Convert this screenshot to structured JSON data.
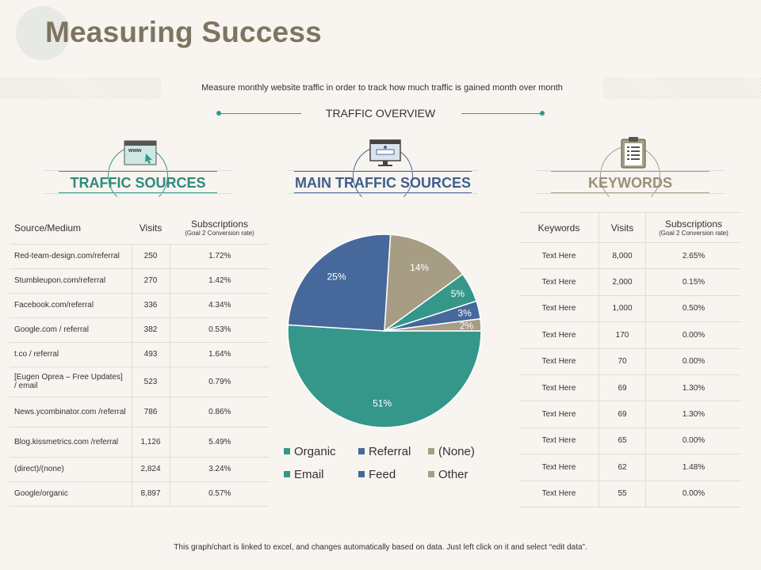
{
  "title": "Measuring Success",
  "subtitle": "Measure monthly website traffic in order to track how much traffic is gained month over month",
  "overview_label": "TRAFFIC OVERVIEW",
  "colors": {
    "teal": "#34978a",
    "blue": "#46689a",
    "gray": "#a79d85",
    "accent": "#2e9a8a"
  },
  "sections": {
    "traffic_sources": {
      "label": "TRAFFIC SOURCES",
      "icon": "browser-www-icon",
      "icon_text": "www"
    },
    "main_traffic_sources": {
      "label": "MAIN TRAFFIC SOURCES",
      "icon": "monitor-login-icon"
    },
    "keywords": {
      "label": "KEYWORDS",
      "icon": "clipboard-icon"
    }
  },
  "sources_table": {
    "headers": {
      "source": "Source/Medium",
      "visits": "Visits",
      "subs": "Subscriptions",
      "subs_sub": "(Goal 2 Conversion rate)"
    },
    "rows": [
      {
        "source": "Red-team-design.com/referral",
        "visits": "250",
        "rate": "1.72%"
      },
      {
        "source": "Stumbleupon.com/referral",
        "visits": "270",
        "rate": "1.42%"
      },
      {
        "source": "Facebook.com/referral",
        "visits": "336",
        "rate": "4.34%"
      },
      {
        "source": "Google.com / referral",
        "visits": "382",
        "rate": "0.53%"
      },
      {
        "source": "t.co / referral",
        "visits": "493",
        "rate": "1.64%"
      },
      {
        "source": "[Eugen Oprea – Free Updates] / email",
        "visits": "523",
        "rate": "0.79%"
      },
      {
        "source": "News.ycombinator.com /referral",
        "visits": "786",
        "rate": "0.86%"
      },
      {
        "source": "Blog.kissmetrics.com /referral",
        "visits": "1,126",
        "rate": "5.49%"
      },
      {
        "source": "(direct)/(none)",
        "visits": "2,824",
        "rate": "3.24%"
      },
      {
        "source": "Google/organic",
        "visits": "8,897",
        "rate": "0.57%"
      }
    ]
  },
  "keywords_table": {
    "headers": {
      "keyword": "Keywords",
      "visits": "Visits",
      "subs": "Subscriptions",
      "subs_sub": "(Goal 2 Conversion rate)"
    },
    "rows": [
      {
        "keyword": "Text Here",
        "visits": "8,000",
        "rate": "2.65%"
      },
      {
        "keyword": "Text Here",
        "visits": "2,000",
        "rate": "0.15%"
      },
      {
        "keyword": "Text Here",
        "visits": "1,000",
        "rate": "0.50%"
      },
      {
        "keyword": "Text Here",
        "visits": "170",
        "rate": "0.00%"
      },
      {
        "keyword": "Text Here",
        "visits": "70",
        "rate": "0.00%"
      },
      {
        "keyword": "Text Here",
        "visits": "69",
        "rate": "1.30%"
      },
      {
        "keyword": "Text Here",
        "visits": "69",
        "rate": "1.30%"
      },
      {
        "keyword": "Text Here",
        "visits": "65",
        "rate": "0.00%"
      },
      {
        "keyword": "Text Here",
        "visits": "62",
        "rate": "1.48%"
      },
      {
        "keyword": "Text Here",
        "visits": "55",
        "rate": "0.00%"
      }
    ]
  },
  "chart_data": {
    "type": "pie",
    "slices": [
      {
        "name": "Organic",
        "value": 51,
        "label": "51%",
        "color": "#34978a"
      },
      {
        "name": "Referral",
        "value": 25,
        "label": "25%",
        "color": "#46689a"
      },
      {
        "name": "(None)",
        "value": 14,
        "label": "14%",
        "color": "#a79d85"
      },
      {
        "name": "Email",
        "value": 5,
        "label": "5%",
        "color": "#34978a"
      },
      {
        "name": "Feed",
        "value": 3,
        "label": "3%",
        "color": "#46689a"
      },
      {
        "name": "Other",
        "value": 2,
        "label": "2%",
        "color": "#a79d85"
      }
    ],
    "legend_position": "bottom"
  },
  "footer": "This graph/chart is linked to excel, and changes automatically based on data. Just left click on it and select “edit data”."
}
